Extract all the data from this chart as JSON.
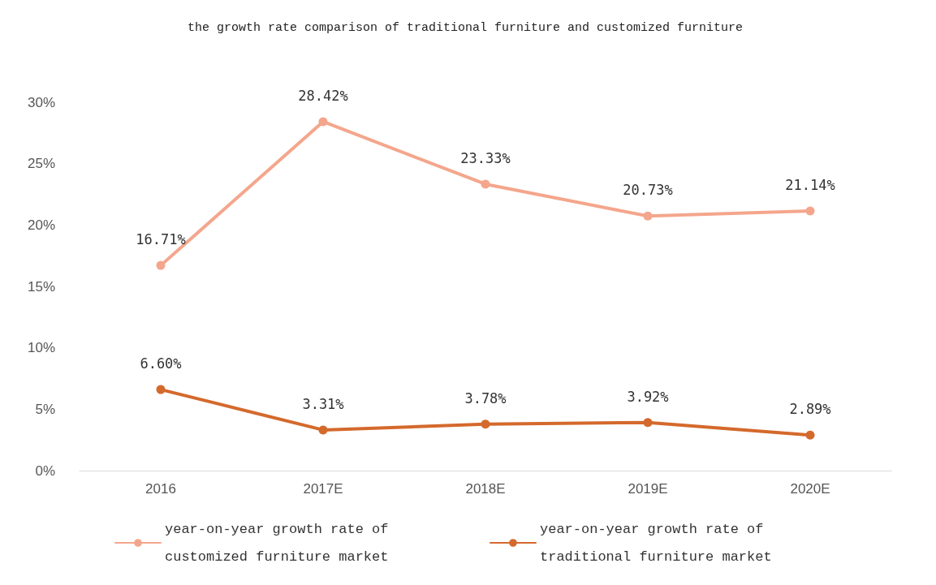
{
  "chart_data": {
    "type": "line",
    "title": "the growth rate comparison of traditional furniture and customized furniture",
    "categories": [
      "2016",
      "2017E",
      "2018E",
      "2019E",
      "2020E"
    ],
    "series": [
      {
        "name": "year-on-year growth rate of customized furniture market",
        "color": "#f4a68c",
        "values": [
          16.71,
          28.42,
          23.33,
          20.73,
          21.14
        ],
        "value_labels": [
          "16.71%",
          "28.42%",
          "23.33%",
          "20.73%",
          "21.14%"
        ]
      },
      {
        "name": "year-on-year growth rate of traditional furniture market",
        "color": "#d4692c",
        "values": [
          6.6,
          3.31,
          3.78,
          3.92,
          2.89
        ],
        "value_labels": [
          "6.60%",
          "3.31%",
          "3.78%",
          "3.92%",
          "2.89%"
        ]
      }
    ],
    "ylim": [
      0,
      30
    ],
    "yticks": [
      {
        "value": 0,
        "label": "0%"
      },
      {
        "value": 5,
        "label": "5%"
      },
      {
        "value": 10,
        "label": "10%"
      },
      {
        "value": 15,
        "label": "15%"
      },
      {
        "value": 20,
        "label": "20%"
      },
      {
        "value": 25,
        "label": "25%"
      },
      {
        "value": 30,
        "label": "30%"
      }
    ],
    "grid": false,
    "legend": "bottom",
    "marker": "circle",
    "line_style": "solid"
  }
}
